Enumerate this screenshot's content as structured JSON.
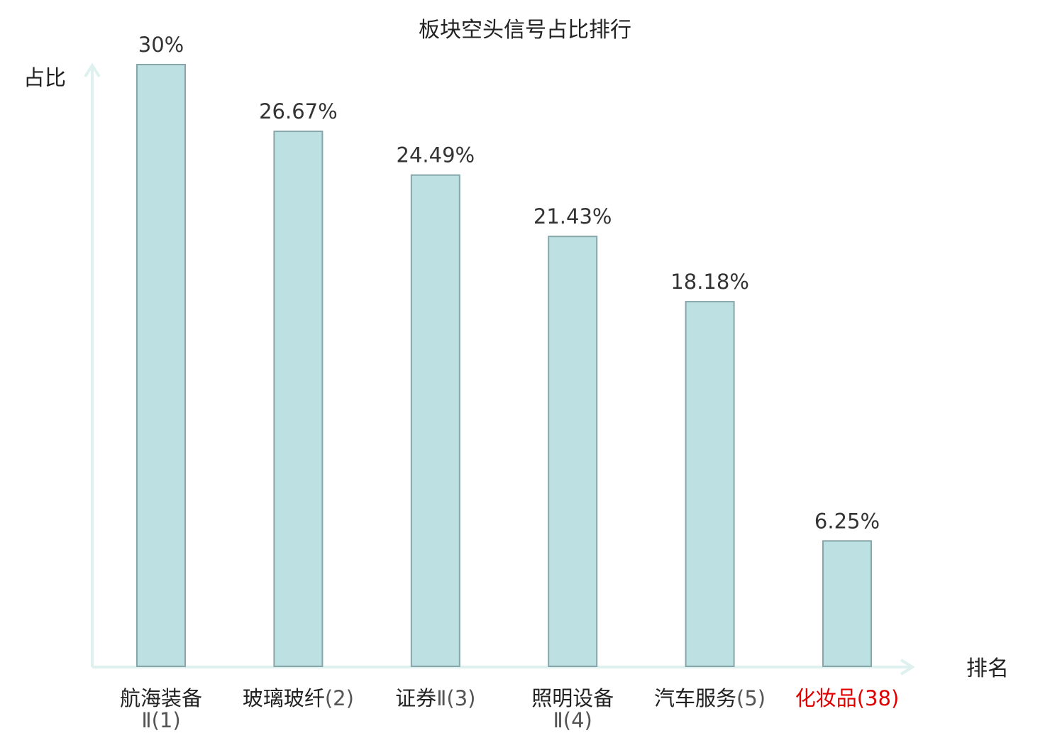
{
  "chart_data": {
    "type": "bar",
    "title": "板块空头信号占比排行",
    "ylabel": "占比",
    "xlabel": "排名",
    "ylim": [
      0,
      30
    ],
    "grid": false,
    "legend": "none",
    "colors": {
      "bar_fill": "#bde1e3",
      "bar_stroke": "#86a6aa",
      "axis": "#dff1ef",
      "highlight_text": "#e00000",
      "text": "#333333"
    },
    "categories": [
      {
        "name_lines": [
          "航海装备"
        ],
        "suffix_lines": [
          "Ⅱ(1)"
        ],
        "highlight": false
      },
      {
        "name_lines": [
          "玻璃玻纤"
        ],
        "suffix_lines": [
          "(2)"
        ],
        "highlight": false
      },
      {
        "name_lines": [
          "证券"
        ],
        "suffix_lines": [
          "Ⅱ(3)"
        ],
        "highlight": false
      },
      {
        "name_lines": [
          "照明设备"
        ],
        "suffix_lines": [
          "Ⅱ(4)"
        ],
        "highlight": false
      },
      {
        "name_lines": [
          "汽车服务"
        ],
        "suffix_lines": [
          "(5)"
        ],
        "highlight": false
      },
      {
        "name_lines": [
          "化妆品"
        ],
        "suffix_lines": [
          "(38)"
        ],
        "highlight": true
      }
    ],
    "category_layout": [
      "stacked",
      "inline",
      "inline",
      "stacked",
      "inline",
      "inline"
    ],
    "values": [
      30,
      26.67,
      24.49,
      21.43,
      18.18,
      6.25
    ],
    "value_labels": [
      "30%",
      "26.67%",
      "24.49%",
      "21.43%",
      "18.18%",
      "6.25%"
    ]
  }
}
